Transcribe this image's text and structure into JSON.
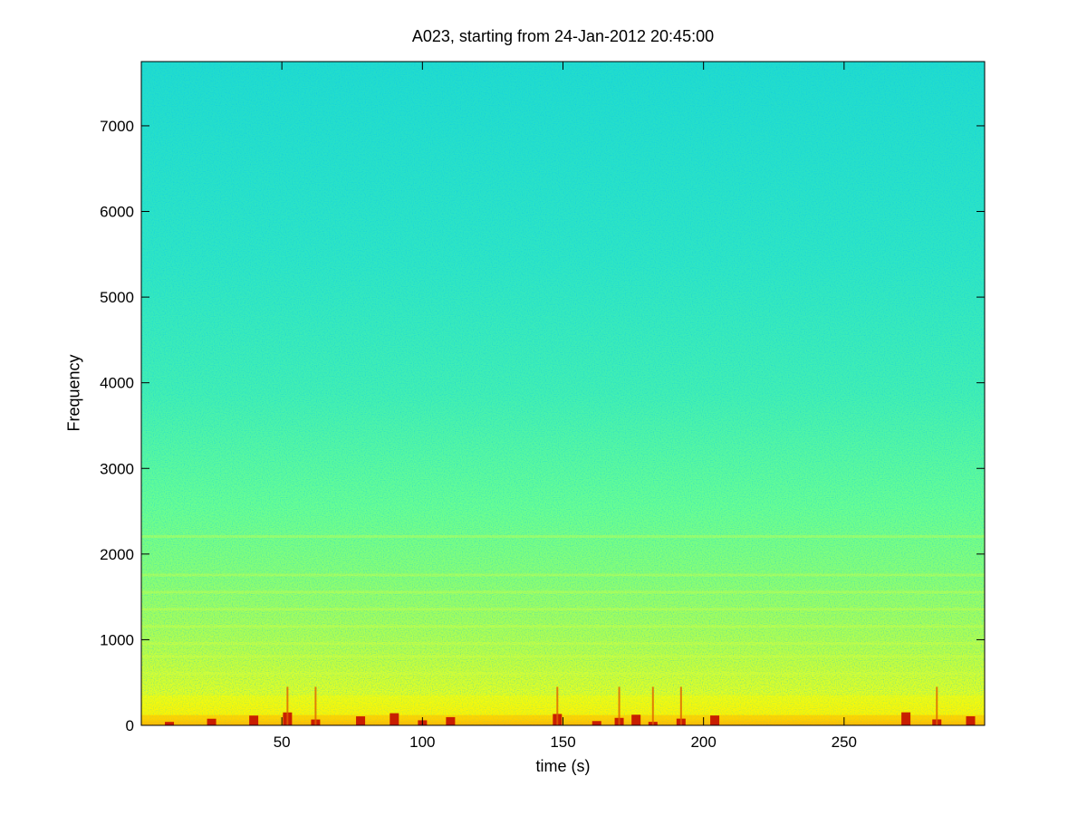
{
  "chart_data": {
    "type": "heatmap",
    "title": "A023, starting from 24-Jan-2012 20:45:00",
    "xlabel": "time (s)",
    "ylabel": "Frequency",
    "xlim": [
      0,
      300
    ],
    "ylim": [
      0,
      7750
    ],
    "xticks": [
      50,
      100,
      150,
      200,
      250
    ],
    "yticks": [
      0,
      1000,
      2000,
      3000,
      4000,
      5000,
      6000,
      7000
    ],
    "xtick_labels": [
      "50",
      "100",
      "150",
      "200",
      "250"
    ],
    "ytick_labels": [
      "0",
      "1000",
      "2000",
      "3000",
      "4000",
      "5000",
      "6000",
      "7000"
    ],
    "colormap": "jet",
    "grid": false,
    "description_levels": {
      "0-400": "high energy (yellow to red)",
      "400-2500": "moderate (yellow-green with horizontal bands)",
      "2500-7750": "low (cyan-green)"
    },
    "colors": {
      "high": "#c00000",
      "mid_high": "#ffff00",
      "mid": "#7fff7f",
      "low": "#00e0d0",
      "lowest": "#0090ff"
    }
  }
}
